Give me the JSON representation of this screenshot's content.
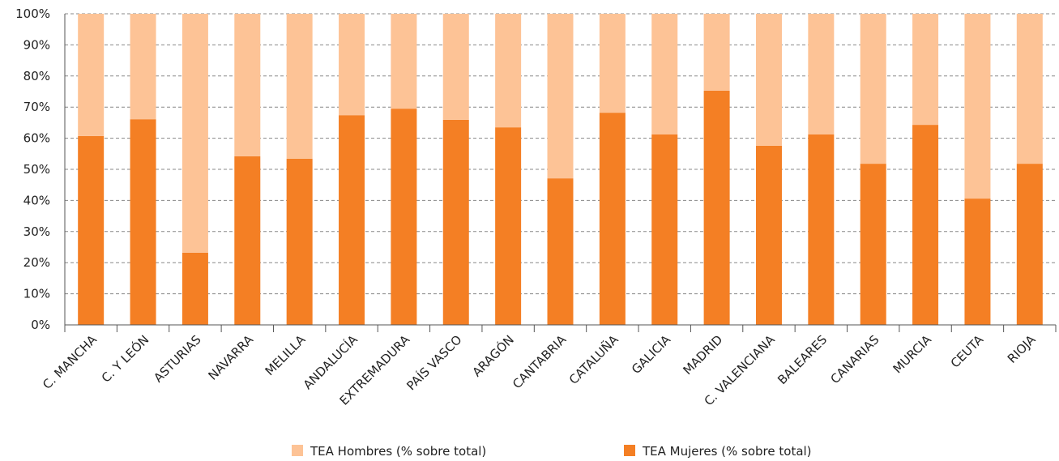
{
  "chart_data": {
    "type": "bar",
    "stacked": true,
    "categories": [
      "C. MANCHA",
      "C. Y LEÓN",
      "ASTURIAS",
      "NAVARRA",
      "MELILLA",
      "ANDALUCÍA",
      "EXTREMADURA",
      "PAÍS VASCO",
      "ARAGÓN",
      "CANTABRIA",
      "CATALUÑA",
      "GALICIA",
      "MADRID",
      "C. VALENCIANA",
      "BALEARES",
      "CANARIAS",
      "MURCIA",
      "CEUTA",
      "RIOJA"
    ],
    "series": [
      {
        "name": "TEA Hombres (% sobre total)",
        "color": "#fdc396",
        "values": [
          39.3,
          33.9,
          76.8,
          45.8,
          46.6,
          32.6,
          30.5,
          34.1,
          36.5,
          52.9,
          31.8,
          38.8,
          24.7,
          42.4,
          38.8,
          48.2,
          35.7,
          59.4,
          48.2
        ]
      },
      {
        "name": "TEA Mujeres (% sobre total)",
        "color": "#f47f24",
        "values": [
          60.7,
          66.1,
          23.2,
          54.2,
          53.4,
          67.4,
          69.5,
          65.9,
          63.5,
          47.1,
          68.2,
          61.2,
          75.3,
          57.6,
          61.2,
          51.8,
          64.3,
          40.6,
          51.8
        ]
      }
    ],
    "ylim": [
      0,
      100
    ],
    "yticks": [
      {
        "value": 0,
        "label": "0%"
      },
      {
        "value": 10,
        "label": "10%"
      },
      {
        "value": 20,
        "label": "20%"
      },
      {
        "value": 30,
        "label": "30%"
      },
      {
        "value": 40,
        "label": "40%"
      },
      {
        "value": 50,
        "label": "50%"
      },
      {
        "value": 60,
        "label": "60%"
      },
      {
        "value": 70,
        "label": "70%"
      },
      {
        "value": 80,
        "label": "80%"
      },
      {
        "value": 90,
        "label": "90%"
      },
      {
        "value": 100,
        "label": "100%"
      }
    ],
    "grid": true
  }
}
